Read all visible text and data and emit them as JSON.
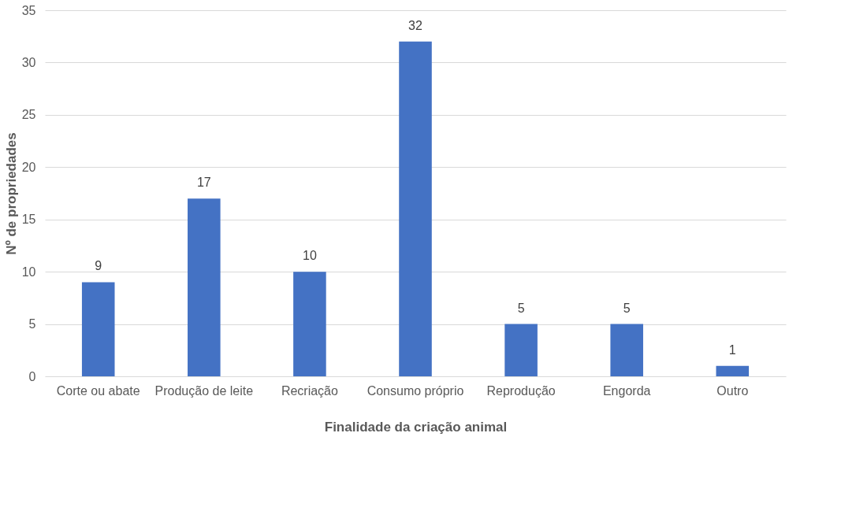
{
  "chart_data": {
    "type": "bar",
    "xlabel": "Finalidade da criação animal",
    "ylabel": "Nº de propriedades",
    "categories": [
      "Corte ou abate",
      "Produção de leite",
      "Recriação",
      "Consumo próprio",
      "Reprodução",
      "Engorda",
      "Outro"
    ],
    "values": [
      9,
      17,
      10,
      32,
      5,
      5,
      1
    ],
    "color": "#4472c4",
    "ylim": [
      0,
      35
    ],
    "yticks": [
      0,
      5,
      10,
      15,
      20,
      25,
      30,
      35
    ],
    "grid": "y",
    "data_labels": true
  }
}
